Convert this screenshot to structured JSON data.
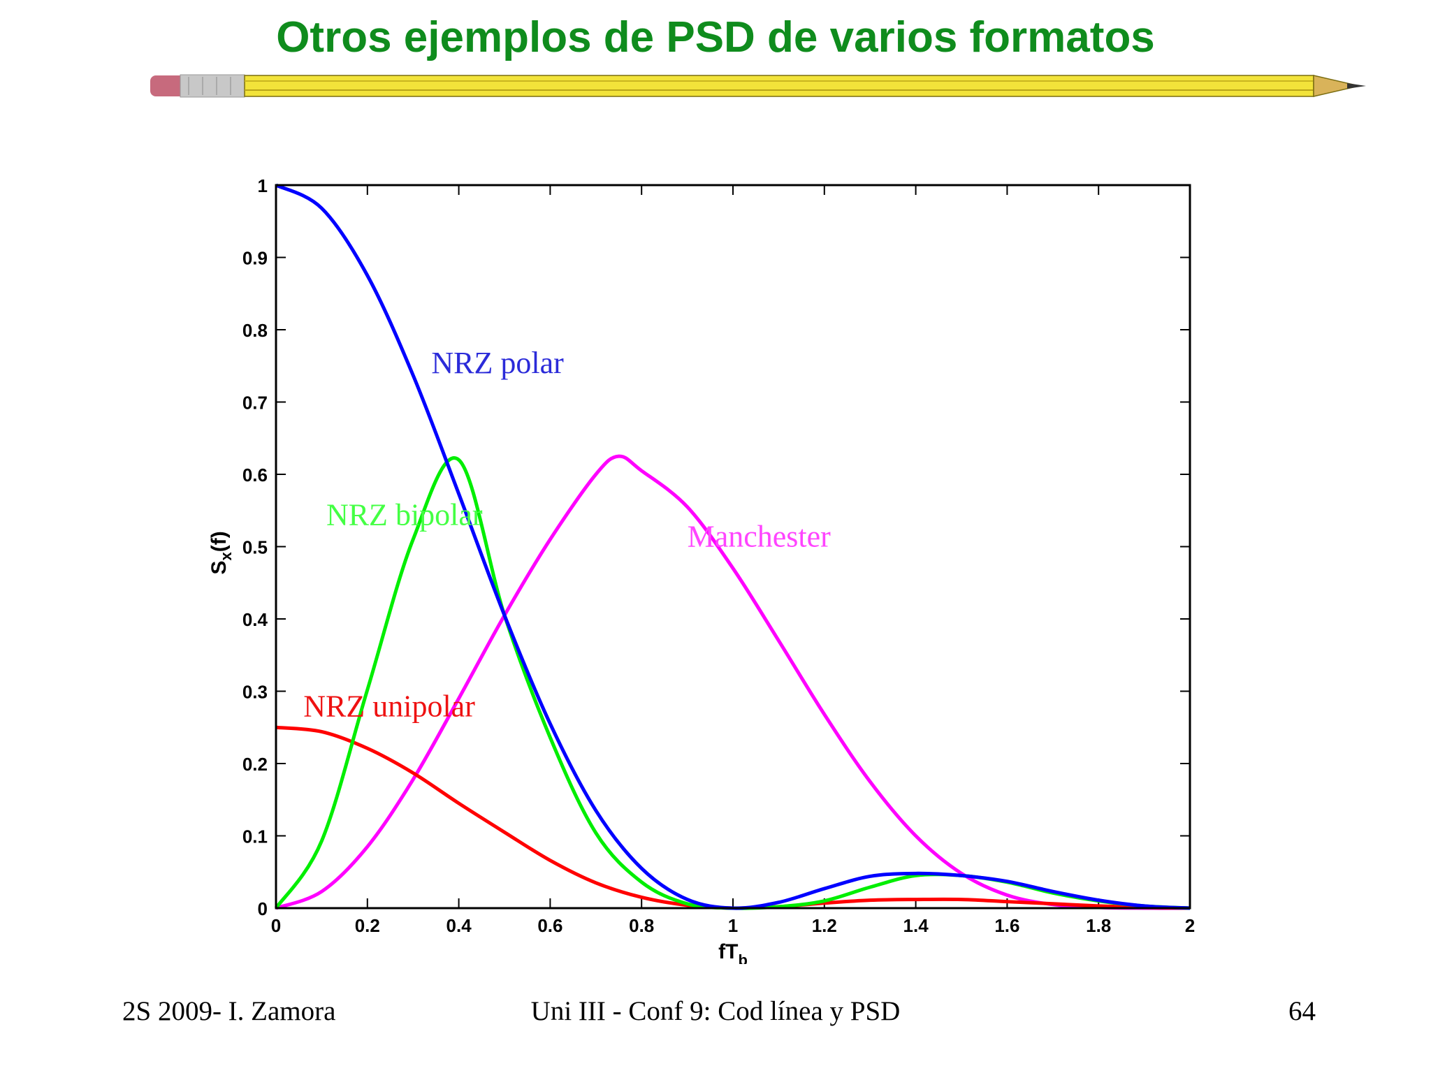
{
  "slide": {
    "title": "Otros ejemplos de PSD de varios formatos"
  },
  "footer": {
    "left": "2S 2009- I. Zamora",
    "center": "Uni III - Conf 9: Cod línea y PSD",
    "page_number": "64"
  },
  "chart_data": {
    "type": "line",
    "xlabel": "fT",
    "xlabel_sub": "b",
    "ylabel": "S",
    "ylabel_sub": "x",
    "ylabel_suffix": "(f)",
    "xlim": [
      0,
      2
    ],
    "ylim": [
      0,
      1
    ],
    "x_ticks": [
      "0",
      "0.2",
      "0.4",
      "0.6",
      "0.8",
      "1",
      "1.2",
      "1.4",
      "1.6",
      "1.8",
      "2"
    ],
    "y_ticks": [
      "0",
      "0.1",
      "0.2",
      "0.3",
      "0.4",
      "0.5",
      "0.6",
      "0.7",
      "0.8",
      "0.9",
      "1"
    ],
    "grid": false,
    "series": [
      {
        "name": "NRZ polar",
        "color": "#0000ff",
        "x": [
          0,
          0.1,
          0.2,
          0.3,
          0.4,
          0.5,
          0.6,
          0.7,
          0.8,
          0.9,
          1.0,
          1.1,
          1.2,
          1.3,
          1.4,
          1.5,
          1.6,
          1.7,
          1.8,
          1.9,
          2.0
        ],
        "y": [
          1.0,
          0.968,
          0.875,
          0.737,
          0.573,
          0.405,
          0.255,
          0.135,
          0.055,
          0.012,
          0.0,
          0.008,
          0.027,
          0.044,
          0.048,
          0.045,
          0.037,
          0.023,
          0.011,
          0.003,
          0.0
        ]
      },
      {
        "name": "NRZ bipolar",
        "color": "#00ee00",
        "x": [
          0,
          0.1,
          0.2,
          0.3,
          0.4,
          0.5,
          0.6,
          0.7,
          0.8,
          0.9,
          1.0,
          1.1,
          1.2,
          1.3,
          1.4,
          1.5,
          1.6,
          1.7,
          1.8,
          1.9,
          2.0
        ],
        "y": [
          0.0,
          0.093,
          0.302,
          0.51,
          0.62,
          0.405,
          0.236,
          0.104,
          0.036,
          0.006,
          0.0,
          0.002,
          0.01,
          0.029,
          0.045,
          0.045,
          0.036,
          0.021,
          0.01,
          0.003,
          0.0
        ]
      },
      {
        "name": "NRZ unipolar",
        "color": "#ff0000",
        "x": [
          0,
          0.1,
          0.2,
          0.3,
          0.4,
          0.5,
          0.6,
          0.7,
          0.8,
          0.9,
          1.0,
          1.1,
          1.2,
          1.3,
          1.4,
          1.5,
          1.6,
          1.7,
          1.8,
          1.9,
          2.0
        ],
        "y": [
          0.25,
          0.244,
          0.221,
          0.187,
          0.145,
          0.105,
          0.066,
          0.035,
          0.015,
          0.004,
          0.0,
          0.002,
          0.007,
          0.011,
          0.012,
          0.012,
          0.009,
          0.006,
          0.003,
          0.001,
          0.0
        ]
      },
      {
        "name": "Manchester",
        "color": "#ff00ff",
        "x": [
          0,
          0.1,
          0.2,
          0.3,
          0.4,
          0.5,
          0.6,
          0.7,
          0.75,
          0.8,
          0.9,
          1.0,
          1.1,
          1.2,
          1.3,
          1.4,
          1.5,
          1.6,
          1.7,
          1.8,
          1.9,
          2.0
        ],
        "y": [
          0.0,
          0.023,
          0.085,
          0.178,
          0.29,
          0.405,
          0.51,
          0.6,
          0.625,
          0.605,
          0.555,
          0.47,
          0.37,
          0.268,
          0.175,
          0.1,
          0.048,
          0.018,
          0.005,
          0.001,
          0.0,
          0.0
        ]
      }
    ],
    "annotations": [
      "NRZ polar",
      "NRZ bipolar",
      "NRZ unipolar",
      "Manchester"
    ]
  },
  "pencil_colors": {
    "body": "#f2e33a",
    "eraser": "#c76a7d",
    "ferrule": "#c8c8c8",
    "wood": "#d9b35a"
  }
}
